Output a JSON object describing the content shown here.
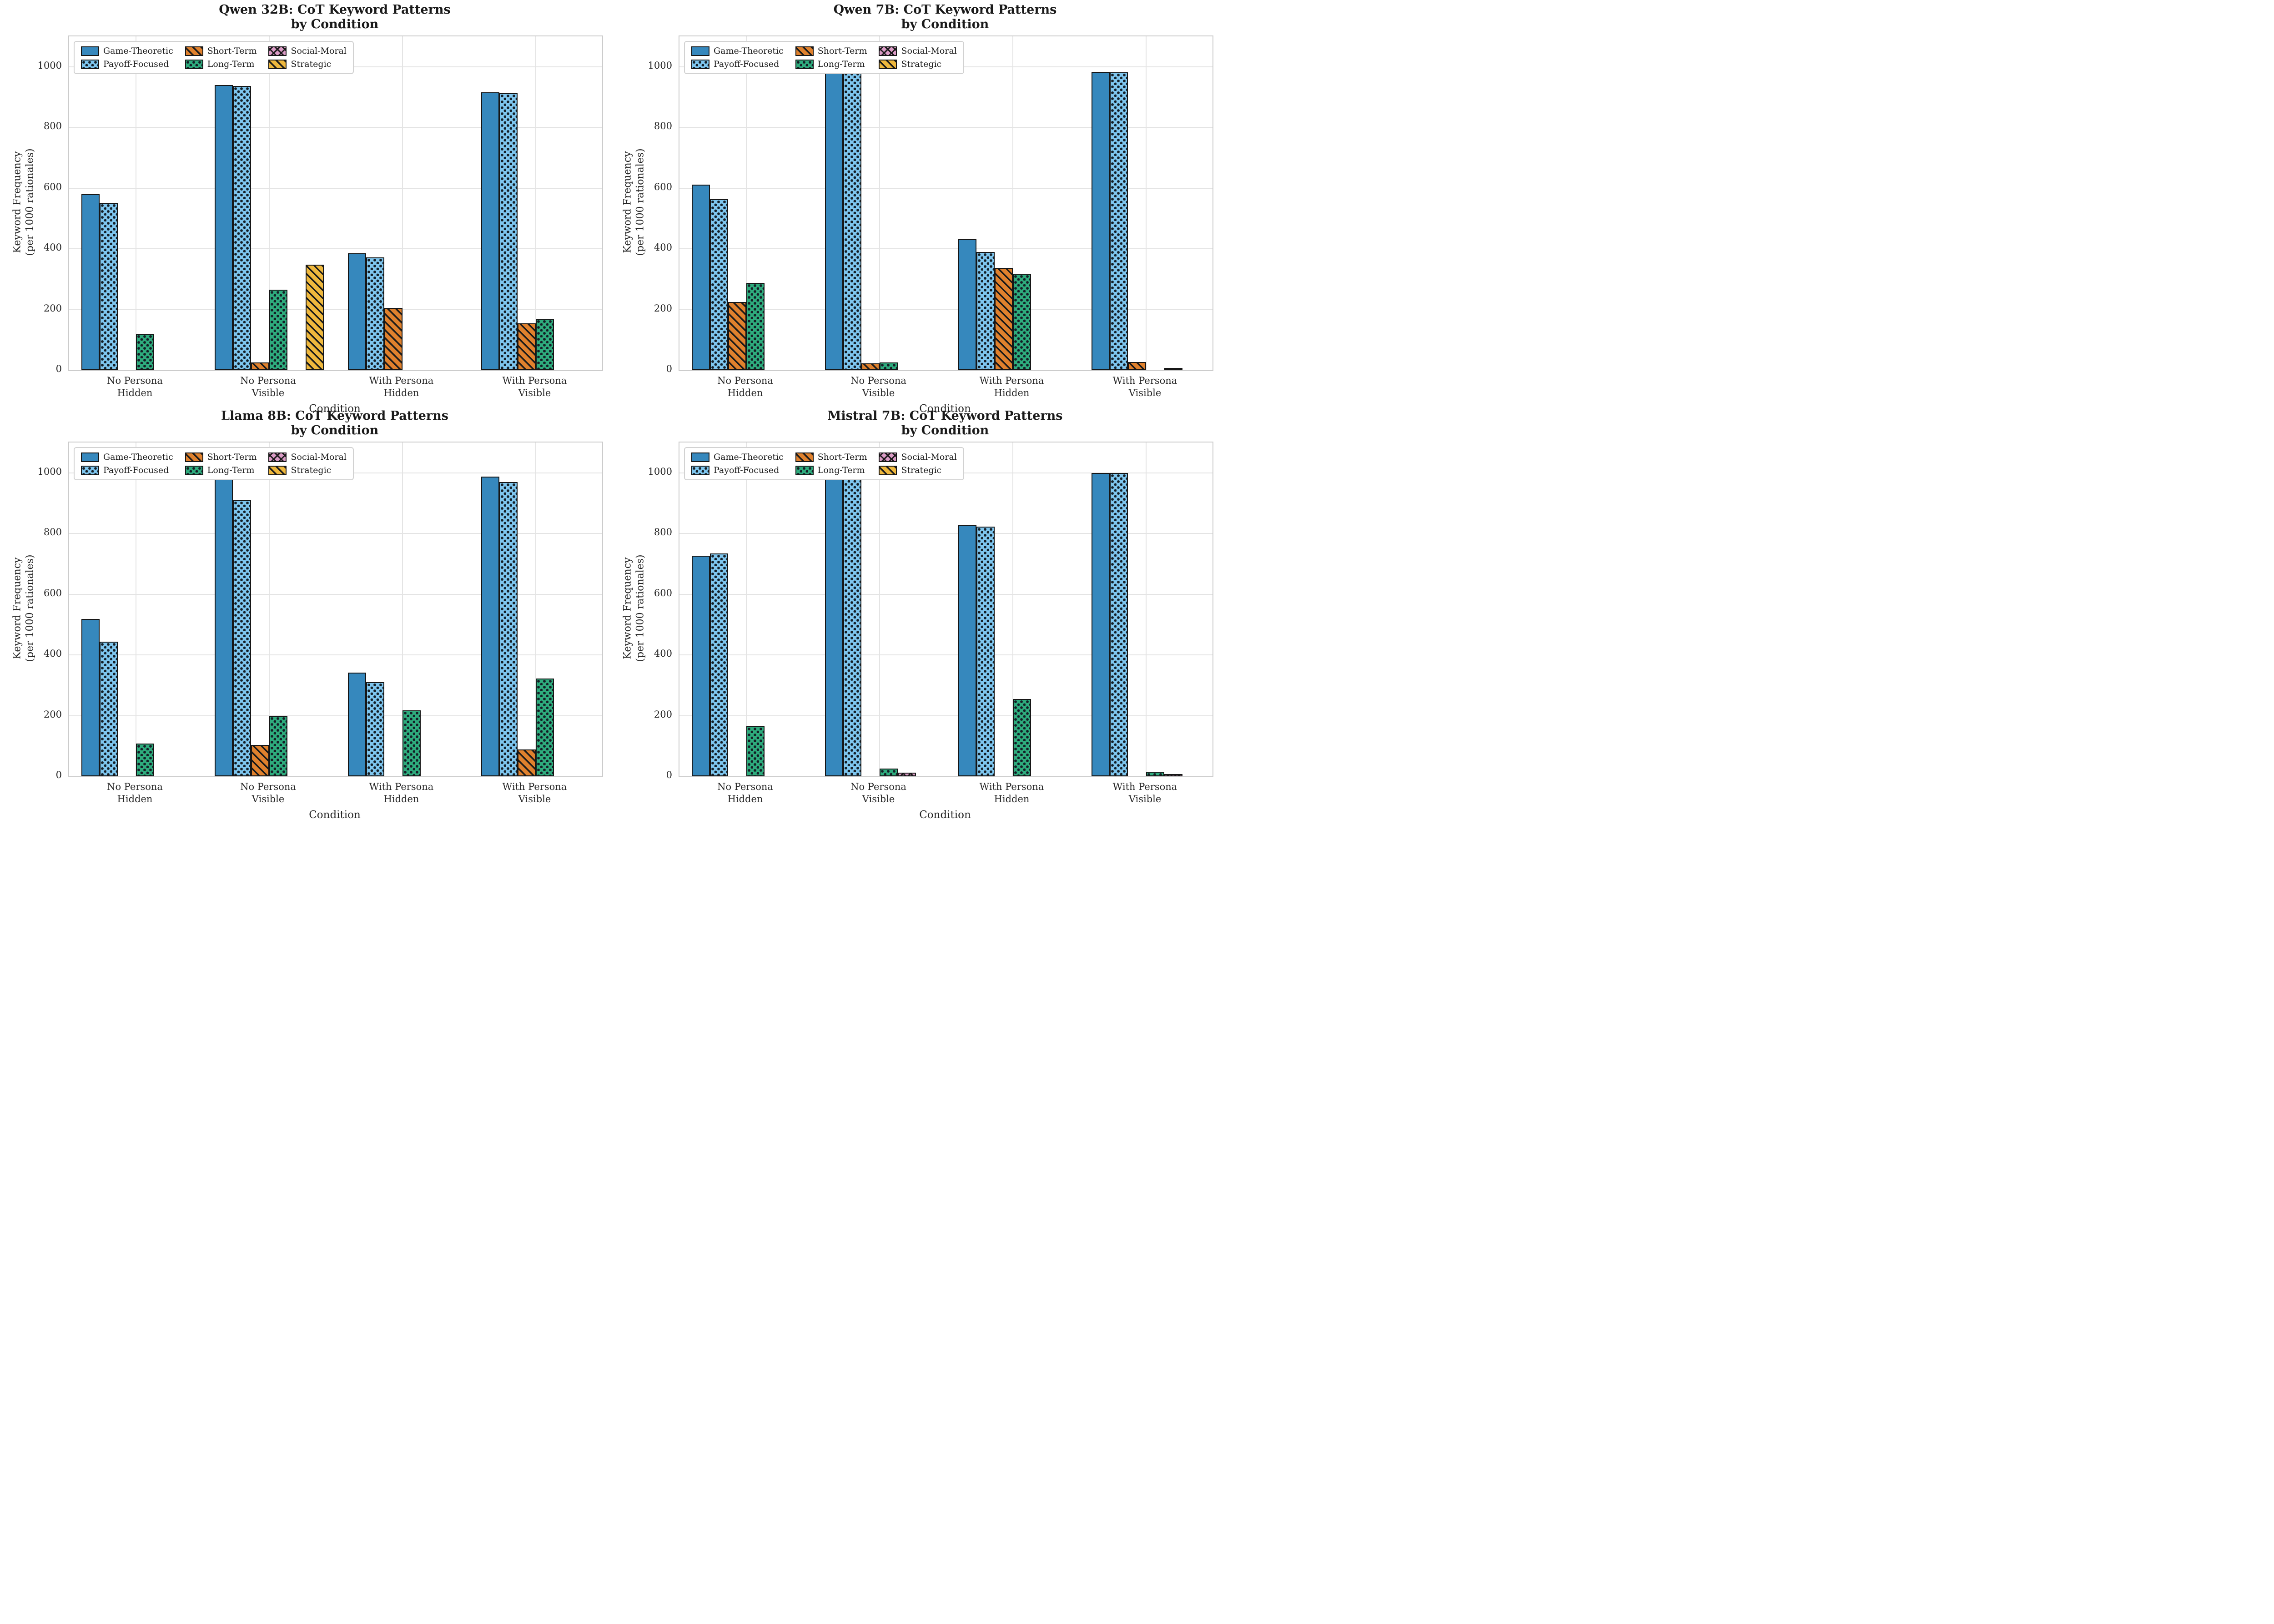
{
  "axes": {
    "ylabel_line1": "Keyword Frequency",
    "ylabel_line2": "(per 1000 rationales)",
    "xlabel": "Condition",
    "yticks": [
      0,
      200,
      400,
      600,
      800,
      1000
    ],
    "ymax": 1100,
    "grid": true,
    "legend_position": "upper left"
  },
  "categories": [
    {
      "line1": "No Persona",
      "line2": "Hidden"
    },
    {
      "line1": "No Persona",
      "line2": "Visible"
    },
    {
      "line1": "With Persona",
      "line2": "Hidden"
    },
    {
      "line1": "With Persona",
      "line2": "Visible"
    }
  ],
  "legend_items": [
    {
      "label": "Game-Theoretic",
      "color": "#3688BD",
      "hatch": "none"
    },
    {
      "label": "Payoff-Focused",
      "color": "#7EC6EF",
      "hatch": "dot"
    },
    {
      "label": "Short-Term",
      "color": "#E0812D",
      "hatch": "slash"
    },
    {
      "label": "Long-Term",
      "color": "#2EAC7D",
      "hatch": "dot"
    },
    {
      "label": "Social-Moral",
      "color": "#DB9BC6",
      "hatch": "cross"
    },
    {
      "label": "Strategic",
      "color": "#EFB83D",
      "hatch": "slash"
    }
  ],
  "chart_data": [
    {
      "type": "bar",
      "title_line1": "Qwen 32B: CoT Keyword Patterns",
      "title_line2": "by Condition",
      "series": [
        {
          "name": "Game-Theoretic",
          "values": [
            580,
            940,
            385,
            915
          ]
        },
        {
          "name": "Payoff-Focused",
          "values": [
            551,
            937,
            371,
            912
          ]
        },
        {
          "name": "Short-Term",
          "values": [
            0,
            25,
            205,
            154
          ]
        },
        {
          "name": "Long-Term",
          "values": [
            120,
            265,
            0,
            169
          ]
        },
        {
          "name": "Social-Moral",
          "values": [
            0,
            0,
            0,
            0
          ]
        },
        {
          "name": "Strategic",
          "values": [
            0,
            348,
            0,
            0
          ]
        }
      ]
    },
    {
      "type": "bar",
      "title_line1": "Qwen 7B: CoT Keyword Patterns",
      "title_line2": "by Condition",
      "series": [
        {
          "name": "Game-Theoretic",
          "values": [
            612,
            987,
            431,
            983
          ]
        },
        {
          "name": "Payoff-Focused",
          "values": [
            563,
            985,
            389,
            982
          ]
        },
        {
          "name": "Short-Term",
          "values": [
            225,
            22,
            337,
            27
          ]
        },
        {
          "name": "Long-Term",
          "values": [
            288,
            26,
            317,
            0
          ]
        },
        {
          "name": "Social-Moral",
          "values": [
            0,
            0,
            0,
            7
          ]
        },
        {
          "name": "Strategic",
          "values": [
            0,
            0,
            0,
            0
          ]
        }
      ]
    },
    {
      "type": "bar",
      "title_line1": "Llama 8B: CoT Keyword Patterns",
      "title_line2": "by Condition",
      "series": [
        {
          "name": "Game-Theoretic",
          "values": [
            518,
            978,
            341,
            988
          ]
        },
        {
          "name": "Payoff-Focused",
          "values": [
            443,
            910,
            310,
            970
          ]
        },
        {
          "name": "Short-Term",
          "values": [
            0,
            104,
            0,
            88
          ]
        },
        {
          "name": "Long-Term",
          "values": [
            108,
            200,
            218,
            322
          ]
        },
        {
          "name": "Social-Moral",
          "values": [
            0,
            0,
            0,
            0
          ]
        },
        {
          "name": "Strategic",
          "values": [
            0,
            0,
            0,
            0
          ]
        }
      ]
    },
    {
      "type": "bar",
      "title_line1": "Mistral 7B: CoT Keyword Patterns",
      "title_line2": "by Condition",
      "series": [
        {
          "name": "Game-Theoretic",
          "values": [
            727,
            997,
            829,
            1000
          ]
        },
        {
          "name": "Payoff-Focused",
          "values": [
            735,
            991,
            823,
            999
          ]
        },
        {
          "name": "Short-Term",
          "values": [
            0,
            0,
            0,
            0
          ]
        },
        {
          "name": "Long-Term",
          "values": [
            165,
            25,
            255,
            15
          ]
        },
        {
          "name": "Social-Moral",
          "values": [
            0,
            12,
            0,
            8
          ]
        },
        {
          "name": "Strategic",
          "values": [
            0,
            0,
            0,
            0
          ]
        }
      ]
    }
  ]
}
